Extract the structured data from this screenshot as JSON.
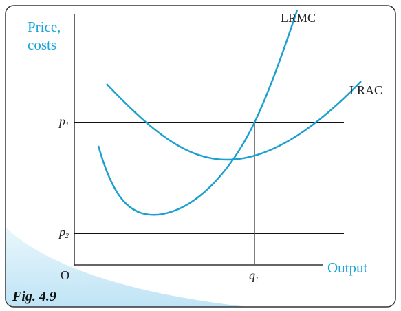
{
  "y_axis_label": [
    "Price,",
    "costs"
  ],
  "x_axis_label": "Output",
  "curves": [
    {
      "label": "LRMC"
    },
    {
      "label": "LRAC"
    }
  ],
  "levels": [
    {
      "main": "p",
      "sub": "1"
    },
    {
      "main": "p",
      "sub": "2"
    }
  ],
  "quantity": {
    "main": "q",
    "sub": "1"
  },
  "origin": "O",
  "caption": "Fig. 4.9"
}
